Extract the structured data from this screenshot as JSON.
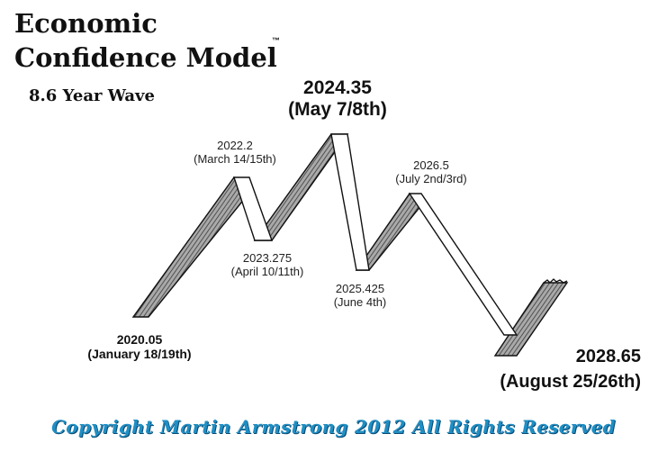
{
  "title": {
    "line1": "Economic",
    "line2": "Confidence Model",
    "trademark": "™",
    "subtitle": "8.6 Year Wave"
  },
  "points": [
    {
      "id": "p2020",
      "date": "2020.05",
      "note": "(January 18/19th)",
      "type": "trough"
    },
    {
      "id": "p2022",
      "date": "2022.2",
      "note": "(March 14/15th)",
      "type": "peak"
    },
    {
      "id": "p2023",
      "date": "2023.275",
      "note": "(April 10/11th)",
      "type": "trough"
    },
    {
      "id": "p2024",
      "date": "2024.35",
      "note": "(May 7/8th)",
      "type": "major-peak"
    },
    {
      "id": "p2025",
      "date": "2025.425",
      "note": "(June 4th)",
      "type": "trough"
    },
    {
      "id": "p2026",
      "date": "2026.5",
      "note": "(July 2nd/3rd)",
      "type": "peak"
    },
    {
      "id": "p2028",
      "date": "2028.65",
      "note": "(August 25/26th)",
      "type": "major-trough"
    }
  ],
  "copyright": "Copyright Martin Armstrong 2012 All Rights Reserved",
  "colors": {
    "ink": "#111111",
    "ribbon_shade": "#8a8a8a",
    "ribbon_white": "#ffffff",
    "copyright": "#1f8fc4"
  }
}
